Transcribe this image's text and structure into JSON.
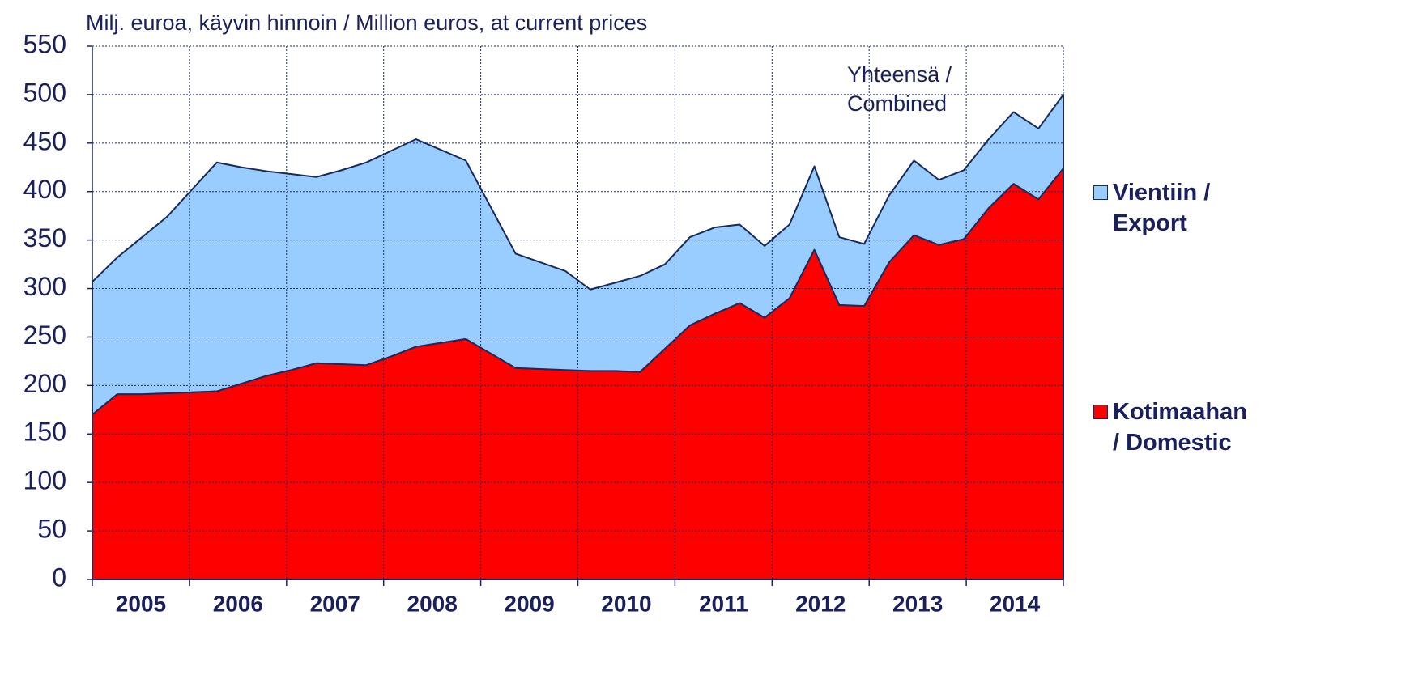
{
  "chart_data": {
    "type": "stacked_area",
    "title": "Milj. euroa, käyvin hinnoin / Million euros, at current prices",
    "annotation": "Yhteensä /\nCombined",
    "categories": [
      null,
      null,
      null,
      null,
      null,
      null,
      null,
      null,
      null,
      null,
      null,
      null,
      null,
      null,
      null,
      null,
      null,
      null,
      null,
      null,
      null,
      null,
      null,
      null,
      null,
      null,
      null,
      null,
      null,
      null,
      null,
      null,
      null,
      null,
      null,
      null,
      null,
      null,
      null,
      null
    ],
    "x_group_labels": [
      "2005",
      "2006",
      "2007",
      "2008",
      "2009",
      "2010",
      "2011",
      "2012",
      "2013",
      "2014"
    ],
    "series": [
      {
        "name": "Kotimaahan\n/ Domestic",
        "color": "#ff0000",
        "values": [
          170,
          191,
          191,
          192,
          193,
          194,
          202,
          210,
          216,
          223,
          222,
          221,
          230,
          240,
          244,
          248,
          233,
          218,
          217,
          216,
          215,
          215,
          214,
          238,
          262,
          274,
          285,
          270,
          290,
          340,
          283,
          282,
          327,
          355,
          345,
          351,
          383,
          408,
          392,
          424
        ]
      },
      {
        "name": "Vientiin /\nExport",
        "color": "#99ccff",
        "values": [
          137,
          141,
          162,
          182,
          209,
          236,
          223,
          211,
          202,
          192,
          200,
          209,
          212,
          214,
          199,
          184,
          151,
          118,
          110,
          102,
          84,
          91,
          99,
          87,
          91,
          89,
          81,
          74,
          76,
          86,
          70,
          64,
          69,
          77,
          67,
          71,
          71,
          74,
          73,
          76
        ]
      }
    ],
    "ylim": [
      0,
      550
    ],
    "yticks": [
      0,
      50,
      100,
      150,
      200,
      250,
      300,
      350,
      400,
      450,
      500,
      550
    ],
    "grid": true,
    "legend": "right"
  }
}
